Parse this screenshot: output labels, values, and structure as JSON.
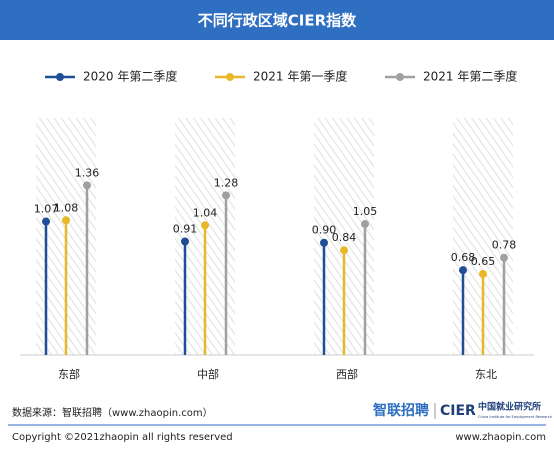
{
  "chart_data": {
    "type": "lollipop",
    "title": "不同行政区域CIER指数",
    "categories": [
      "东部",
      "中部",
      "西部",
      "东北"
    ],
    "series": [
      {
        "name": "2020 年第二季度",
        "color": "#1f4e96",
        "values": [
          1.07,
          0.91,
          0.9,
          0.68
        ],
        "value_labels": [
          "1.07",
          "0.91",
          "0.90",
          "0.68"
        ]
      },
      {
        "name": "2021 年第一季度",
        "color": "#e8b828",
        "values": [
          1.08,
          1.04,
          0.84,
          0.65
        ],
        "value_labels": [
          "1.08",
          "1.04",
          "0.84",
          "0.65"
        ]
      },
      {
        "name": "2021 年第二季度",
        "color": "#a0a0a0",
        "values": [
          1.36,
          1.28,
          1.05,
          0.78
        ],
        "value_labels": [
          "1.36",
          "1.28",
          "1.05",
          "0.78"
        ]
      }
    ],
    "ylim": [
      0,
      1.9
    ]
  },
  "footer": {
    "source": "数据来源：智联招聘（www.zhaopin.com）",
    "logo_zhaopin": "智联招聘",
    "logo_cier": "CIER",
    "logo_cier_cn": "中国就业研究所",
    "logo_cier_en": "China Institute for Employment Research",
    "copyright": "Copyright ©2021zhaopin all rights reserved",
    "website": "www.zhaopin.com"
  }
}
